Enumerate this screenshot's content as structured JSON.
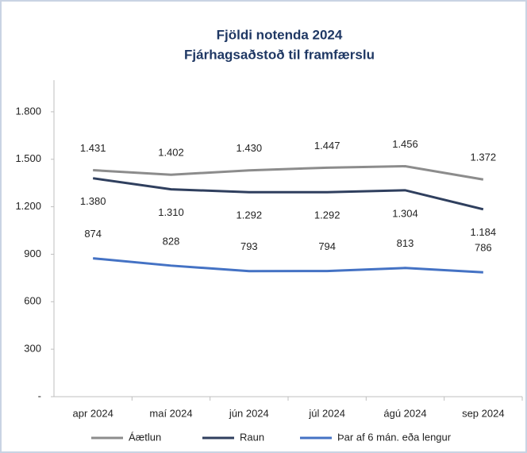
{
  "chart_data": {
    "type": "line",
    "title": "Fjöldi notenda 2024",
    "subtitle": "Fjárhagsaðstoð til framfærslu",
    "categories": [
      "apr 2024",
      "maí 2024",
      "jún 2024",
      "júl 2024",
      "ágú 2024",
      "sep 2024"
    ],
    "series": [
      {
        "name": "Áætlun",
        "color": "#8c8c8c",
        "values": [
          1431,
          1402,
          1430,
          1447,
          1456,
          1372
        ],
        "value_labels": [
          "1.431",
          "1.402",
          "1.430",
          "1.447",
          "1.456",
          "1.372"
        ]
      },
      {
        "name": "Raun",
        "color": "#2f3f5e",
        "values": [
          1380,
          1310,
          1292,
          1292,
          1304,
          1184
        ],
        "value_labels": [
          "1.380",
          "1.310",
          "1.292",
          "1.292",
          "1.304",
          "1.184"
        ]
      },
      {
        "name": "Þar af 6 mán. eða lengur",
        "color": "#4472c4",
        "values": [
          874,
          828,
          793,
          794,
          813,
          786
        ]
      }
    ],
    "ylim": [
      0,
      2000
    ],
    "yticks": [
      {
        "value": 0,
        "label": "-"
      },
      300,
      600,
      900,
      {
        "value": 1200,
        "label": "1.200"
      },
      {
        "value": 1500,
        "label": "1.500"
      },
      {
        "value": 1800,
        "label": "1.800"
      }
    ],
    "legend": "bottom"
  }
}
